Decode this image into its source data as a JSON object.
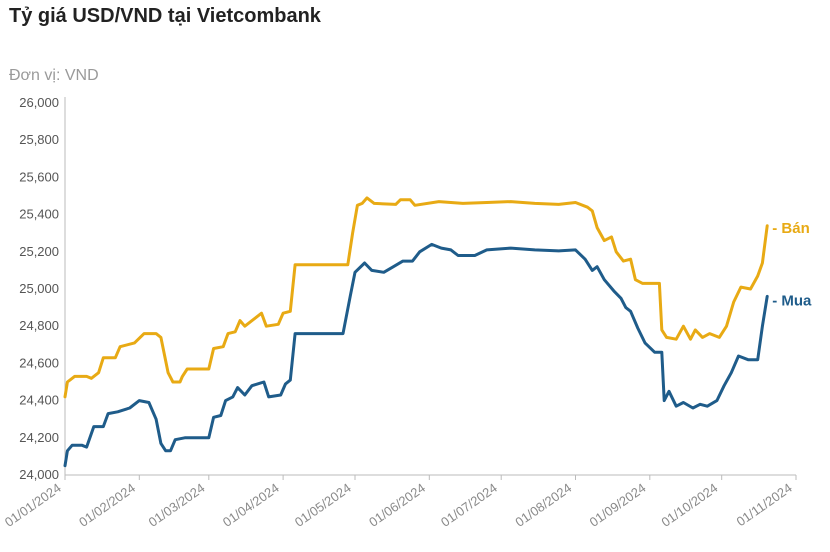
{
  "title": "Tỷ giá USD/VND tại Vietcombank",
  "unit_label": "Đơn vị: VND",
  "colors": {
    "ban": "#E8AA14",
    "mua": "#1F5C8A",
    "axis": "#bbbbbb",
    "grid": "#e6e6e6"
  },
  "chart_data": {
    "type": "line",
    "title": "Tỷ giá USD/VND tại Vietcombank",
    "ylabel": "Đơn vị: VND",
    "xlabel": "",
    "ylim": [
      24000,
      26000
    ],
    "xlim": [
      "2024-01-01",
      "2024-11-01"
    ],
    "y_ticks": [
      24000,
      24200,
      24400,
      24600,
      24800,
      25000,
      25200,
      25400,
      25600,
      25800,
      26000
    ],
    "y_tick_labels": [
      "24,000",
      "24,200",
      "24,400",
      "24,600",
      "24,800",
      "25,000",
      "25,200",
      "25,400",
      "25,600",
      "25,800",
      "26,000"
    ],
    "x_ticks": [
      "2024-01-01",
      "2024-02-01",
      "2024-03-01",
      "2024-04-01",
      "2024-05-01",
      "2024-06-01",
      "2024-07-01",
      "2024-08-01",
      "2024-09-01",
      "2024-10-01",
      "2024-11-01"
    ],
    "x_tick_labels": [
      "01/01/2024",
      "01/02/2024",
      "01/03/2024",
      "01/04/2024",
      "01/05/2024",
      "01/06/2024",
      "01/07/2024",
      "01/08/2024",
      "01/09/2024",
      "01/10/2024",
      "01/11/2024"
    ],
    "grid": false,
    "legend": "end-of-line labels",
    "series": [
      {
        "name": "Bán",
        "color": "#E8AA14",
        "points": [
          [
            "2024-01-01",
            24420
          ],
          [
            "2024-01-02",
            24500
          ],
          [
            "2024-01-05",
            24530
          ],
          [
            "2024-01-10",
            24530
          ],
          [
            "2024-01-12",
            24520
          ],
          [
            "2024-01-15",
            24550
          ],
          [
            "2024-01-17",
            24630
          ],
          [
            "2024-01-22",
            24630
          ],
          [
            "2024-01-24",
            24690
          ],
          [
            "2024-01-30",
            24710
          ],
          [
            "2024-02-03",
            24760
          ],
          [
            "2024-02-08",
            24760
          ],
          [
            "2024-02-10",
            24740
          ],
          [
            "2024-02-13",
            24550
          ],
          [
            "2024-02-15",
            24500
          ],
          [
            "2024-02-18",
            24500
          ],
          [
            "2024-02-19",
            24530
          ],
          [
            "2024-02-21",
            24570
          ],
          [
            "2024-02-28",
            24570
          ],
          [
            "2024-03-01",
            24570
          ],
          [
            "2024-03-03",
            24680
          ],
          [
            "2024-03-07",
            24690
          ],
          [
            "2024-03-09",
            24760
          ],
          [
            "2024-03-12",
            24770
          ],
          [
            "2024-03-14",
            24830
          ],
          [
            "2024-03-16",
            24800
          ],
          [
            "2024-03-20",
            24840
          ],
          [
            "2024-03-23",
            24870
          ],
          [
            "2024-03-25",
            24800
          ],
          [
            "2024-03-30",
            24810
          ],
          [
            "2024-04-01",
            24870
          ],
          [
            "2024-04-04",
            24880
          ],
          [
            "2024-04-06",
            25130
          ],
          [
            "2024-04-20",
            25130
          ],
          [
            "2024-04-28",
            25130
          ],
          [
            "2024-04-30",
            25300
          ],
          [
            "2024-05-02",
            25450
          ],
          [
            "2024-05-04",
            25460
          ],
          [
            "2024-05-06",
            25490
          ],
          [
            "2024-05-09",
            25460
          ],
          [
            "2024-05-18",
            25455
          ],
          [
            "2024-05-20",
            25480
          ],
          [
            "2024-05-24",
            25480
          ],
          [
            "2024-05-26",
            25450
          ],
          [
            "2024-06-05",
            25470
          ],
          [
            "2024-06-15",
            25460
          ],
          [
            "2024-06-25",
            25465
          ],
          [
            "2024-07-05",
            25470
          ],
          [
            "2024-07-15",
            25460
          ],
          [
            "2024-07-25",
            25455
          ],
          [
            "2024-08-01",
            25465
          ],
          [
            "2024-08-06",
            25440
          ],
          [
            "2024-08-08",
            25420
          ],
          [
            "2024-08-10",
            25330
          ],
          [
            "2024-08-13",
            25260
          ],
          [
            "2024-08-16",
            25280
          ],
          [
            "2024-08-18",
            25200
          ],
          [
            "2024-08-21",
            25150
          ],
          [
            "2024-08-24",
            25160
          ],
          [
            "2024-08-26",
            25050
          ],
          [
            "2024-08-29",
            25030
          ],
          [
            "2024-09-01",
            25030
          ],
          [
            "2024-09-05",
            25030
          ],
          [
            "2024-09-06",
            24780
          ],
          [
            "2024-09-08",
            24740
          ],
          [
            "2024-09-12",
            24730
          ],
          [
            "2024-09-15",
            24800
          ],
          [
            "2024-09-18",
            24730
          ],
          [
            "2024-09-20",
            24780
          ],
          [
            "2024-09-23",
            24740
          ],
          [
            "2024-09-26",
            24760
          ],
          [
            "2024-09-30",
            24740
          ],
          [
            "2024-10-03",
            24800
          ],
          [
            "2024-10-06",
            24930
          ],
          [
            "2024-10-09",
            25010
          ],
          [
            "2024-10-13",
            25000
          ],
          [
            "2024-10-16",
            25070
          ],
          [
            "2024-10-18",
            25140
          ],
          [
            "2024-10-20",
            25340
          ]
        ]
      },
      {
        "name": "Mua",
        "color": "#1F5C8A",
        "points": [
          [
            "2024-01-01",
            24050
          ],
          [
            "2024-01-02",
            24130
          ],
          [
            "2024-01-04",
            24160
          ],
          [
            "2024-01-08",
            24160
          ],
          [
            "2024-01-10",
            24150
          ],
          [
            "2024-01-13",
            24260
          ],
          [
            "2024-01-17",
            24260
          ],
          [
            "2024-01-19",
            24330
          ],
          [
            "2024-01-23",
            24340
          ],
          [
            "2024-01-28",
            24360
          ],
          [
            "2024-02-01",
            24400
          ],
          [
            "2024-02-05",
            24390
          ],
          [
            "2024-02-08",
            24300
          ],
          [
            "2024-02-10",
            24170
          ],
          [
            "2024-02-12",
            24130
          ],
          [
            "2024-02-14",
            24130
          ],
          [
            "2024-02-16",
            24190
          ],
          [
            "2024-02-20",
            24200
          ],
          [
            "2024-02-28",
            24200
          ],
          [
            "2024-03-01",
            24200
          ],
          [
            "2024-03-03",
            24310
          ],
          [
            "2024-03-06",
            24320
          ],
          [
            "2024-03-08",
            24400
          ],
          [
            "2024-03-11",
            24420
          ],
          [
            "2024-03-13",
            24470
          ],
          [
            "2024-03-16",
            24430
          ],
          [
            "2024-03-19",
            24480
          ],
          [
            "2024-03-24",
            24500
          ],
          [
            "2024-03-26",
            24420
          ],
          [
            "2024-03-31",
            24430
          ],
          [
            "2024-04-02",
            24490
          ],
          [
            "2024-04-04",
            24510
          ],
          [
            "2024-04-06",
            24760
          ],
          [
            "2024-04-20",
            24760
          ],
          [
            "2024-04-26",
            24760
          ],
          [
            "2024-04-29",
            24960
          ],
          [
            "2024-05-01",
            25090
          ],
          [
            "2024-05-05",
            25140
          ],
          [
            "2024-05-08",
            25100
          ],
          [
            "2024-05-13",
            25090
          ],
          [
            "2024-05-17",
            25120
          ],
          [
            "2024-05-21",
            25150
          ],
          [
            "2024-05-25",
            25150
          ],
          [
            "2024-05-28",
            25200
          ],
          [
            "2024-06-02",
            25240
          ],
          [
            "2024-06-06",
            25220
          ],
          [
            "2024-06-10",
            25210
          ],
          [
            "2024-06-13",
            25180
          ],
          [
            "2024-06-20",
            25180
          ],
          [
            "2024-06-25",
            25210
          ],
          [
            "2024-07-05",
            25220
          ],
          [
            "2024-07-15",
            25210
          ],
          [
            "2024-07-25",
            25205
          ],
          [
            "2024-08-01",
            25210
          ],
          [
            "2024-08-05",
            25160
          ],
          [
            "2024-08-08",
            25100
          ],
          [
            "2024-08-10",
            25120
          ],
          [
            "2024-08-13",
            25050
          ],
          [
            "2024-08-17",
            24990
          ],
          [
            "2024-08-20",
            24950
          ],
          [
            "2024-08-22",
            24900
          ],
          [
            "2024-08-24",
            24880
          ],
          [
            "2024-08-27",
            24790
          ],
          [
            "2024-08-30",
            24710
          ],
          [
            "2024-09-03",
            24660
          ],
          [
            "2024-09-06",
            24660
          ],
          [
            "2024-09-07",
            24400
          ],
          [
            "2024-09-09",
            24450
          ],
          [
            "2024-09-12",
            24370
          ],
          [
            "2024-09-15",
            24390
          ],
          [
            "2024-09-19",
            24360
          ],
          [
            "2024-09-22",
            24380
          ],
          [
            "2024-09-25",
            24370
          ],
          [
            "2024-09-29",
            24400
          ],
          [
            "2024-10-02",
            24480
          ],
          [
            "2024-10-05",
            24550
          ],
          [
            "2024-10-08",
            24640
          ],
          [
            "2024-10-12",
            24620
          ],
          [
            "2024-10-16",
            24620
          ],
          [
            "2024-10-18",
            24800
          ],
          [
            "2024-10-20",
            24960
          ]
        ]
      }
    ]
  }
}
